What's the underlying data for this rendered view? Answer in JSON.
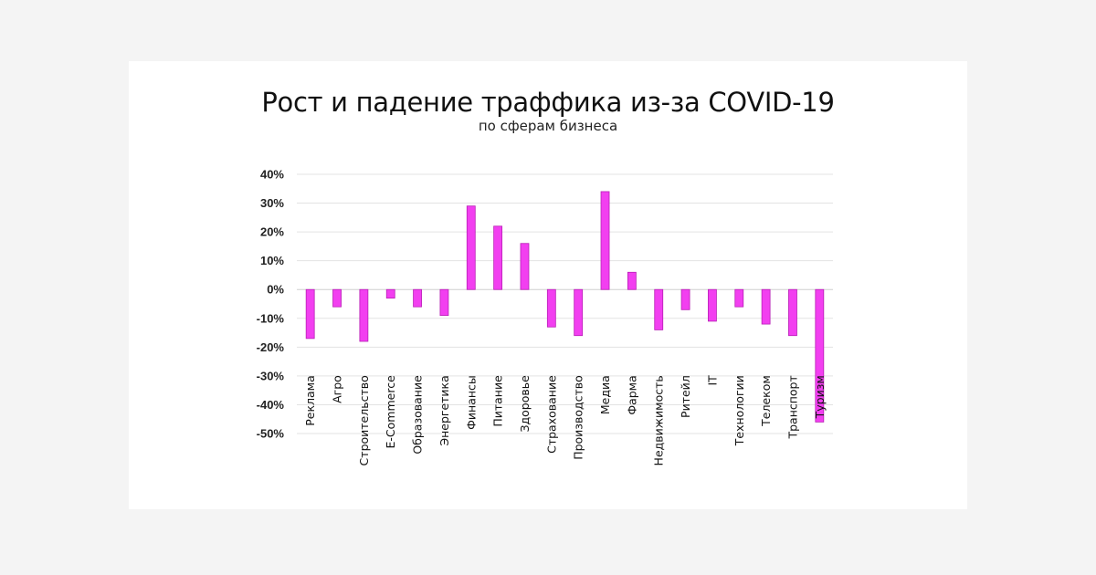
{
  "chart_data": {
    "type": "bar",
    "title": "Рост и падение траффика из-за COVID-19",
    "subtitle": "по сферам бизнеса",
    "xlabel": "",
    "ylabel": "",
    "ylim": [
      -50,
      40
    ],
    "yticks": [
      "40%",
      "30%",
      "20%",
      "10%",
      "0%",
      "-10%",
      "-20%",
      "-30%",
      "-40%",
      "-50%"
    ],
    "ytick_values": [
      40,
      30,
      20,
      10,
      0,
      -10,
      -20,
      -30,
      -40,
      -50
    ],
    "grid": true,
    "bar_color": "#f23ff0",
    "categories": [
      "Реклама",
      "Агро",
      "Строительство",
      "E-Commerce",
      "Образование",
      "Энергетика",
      "Финансы",
      "Питание",
      "Здоровье",
      "Страхование",
      "Производство",
      "Медиа",
      "Фарма",
      "Недвижимость",
      "Ритейл",
      "IT",
      "Технологии",
      "Телеком",
      "Транспорт",
      "Туризм"
    ],
    "values": [
      -17,
      -6,
      -18,
      -3,
      -6,
      -9,
      29,
      22,
      16,
      -13,
      -16,
      34,
      6,
      -14,
      -7,
      -11,
      -6,
      -12,
      -16,
      -46
    ]
  }
}
